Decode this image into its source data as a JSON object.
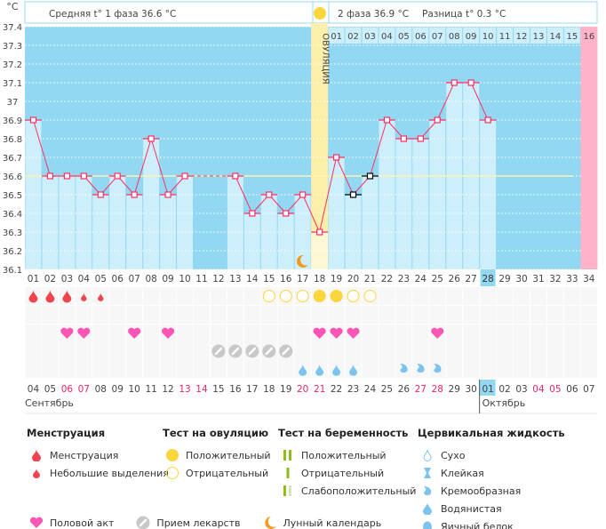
{
  "header": {
    "unit": "°C",
    "phase1_label": "Средняя t° 1 фаза",
    "phase1_value": "36.6 °C",
    "phase2_label": "2 фаза",
    "phase2_value": "36.9 °C",
    "diff_label": "Разница t°",
    "diff_value": "0.3 °C",
    "ovulation_label": "ОВУЛЯЦИЯ"
  },
  "colors": {
    "bg_dark": "#93d8f2",
    "bar": "#cdeefb",
    "line": "#ff2e63",
    "ovulation": "#fdeeaa",
    "pink": "#ffb3c8",
    "cover": "#fdf3b0"
  },
  "chart_data": {
    "type": "line",
    "title": "",
    "ylabel": "°C",
    "ylim": [
      36.1,
      37.4
    ],
    "yticks": [
      "37.4",
      "37.3",
      "37.2",
      "37.1",
      "37",
      "36.9",
      "36.8",
      "36.7",
      "36.6",
      "36.5",
      "36.4",
      "36.3",
      "36.2",
      "36.1"
    ],
    "cycle_days": [
      "01",
      "02",
      "03",
      "04",
      "05",
      "06",
      "07",
      "08",
      "09",
      "10",
      "11",
      "12",
      "13",
      "14",
      "15",
      "16",
      "17",
      "18",
      "19",
      "20",
      "21",
      "22",
      "23",
      "24",
      "25",
      "26",
      "27",
      "28",
      "29",
      "30",
      "31",
      "32",
      "33",
      "34"
    ],
    "temperatures": [
      36.9,
      36.6,
      36.6,
      36.6,
      36.5,
      36.6,
      36.5,
      36.8,
      36.5,
      36.6,
      null,
      null,
      36.6,
      36.4,
      36.5,
      36.4,
      36.5,
      36.3,
      36.7,
      36.5,
      36.6,
      36.9,
      36.8,
      36.8,
      36.9,
      37.1,
      37.1,
      36.9,
      null,
      null,
      null,
      null,
      null,
      null
    ],
    "black_marker_days": [
      20,
      21
    ],
    "cover_line": 36.6,
    "ovulation_day": 18,
    "today_day": 28,
    "phase2_days": [
      "01",
      "02",
      "03",
      "04",
      "05",
      "06",
      "07",
      "08",
      "09",
      "10",
      "11",
      "12",
      "13",
      "14",
      "15",
      "16"
    ],
    "predicted_period_day": 34
  },
  "markers": {
    "menstruation_heavy": [
      1,
      2,
      3
    ],
    "menstruation_light": [
      4,
      5
    ],
    "ovulation_negative": [
      15,
      16,
      17,
      20,
      21
    ],
    "ovulation_positive": [
      18,
      19
    ],
    "intercourse": [
      3,
      4,
      7,
      9,
      18,
      19,
      20,
      25
    ],
    "medication": [
      12,
      13,
      14,
      15,
      16
    ],
    "fluid_watery": [
      17,
      18,
      19,
      20
    ],
    "fluid_creamy": [
      23,
      24,
      25
    ],
    "moon": [
      17
    ]
  },
  "dates": [
    "04",
    "05",
    "06",
    "07",
    "08",
    "09",
    "10",
    "11",
    "12",
    "13",
    "14",
    "15",
    "16",
    "17",
    "18",
    "19",
    "20",
    "21",
    "22",
    "23",
    "24",
    "25",
    "26",
    "27",
    "28",
    "29",
    "30",
    "01",
    "02",
    "03",
    "04",
    "05",
    "06",
    "07"
  ],
  "red_dates_idx": [
    3,
    4,
    10,
    11,
    17,
    18,
    24,
    25,
    31,
    32
  ],
  "months": {
    "first": "Сентябрь",
    "second": "Октябрь"
  },
  "legend": {
    "menstruation": {
      "title": "Менструация",
      "items": [
        "Менструация",
        "Небольшие выделения"
      ]
    },
    "ovulation_test": {
      "title": "Тест на овуляцию",
      "items": [
        "Положительный",
        "Отрицательный"
      ]
    },
    "pregnancy_test": {
      "title": "Тест на беременность",
      "items": [
        "Положительный",
        "Отрицательный",
        "Слабоположительный"
      ]
    },
    "cervical": {
      "title": "Цервикальная жидкость",
      "items": [
        "Сухо",
        "Клейкая",
        "Кремообразная",
        "Водянистая",
        "Яичный белок"
      ]
    },
    "other": [
      "Половой акт",
      "Прием лекарств",
      "Лунный календарь"
    ]
  }
}
